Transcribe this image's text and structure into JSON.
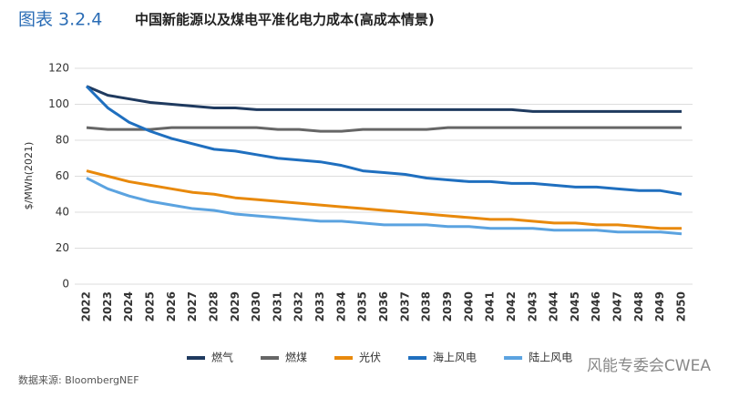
{
  "chart_data": {
    "type": "line",
    "figure_label": "图表 3.2.4",
    "title": "中国新能源以及煤电平准化电力成本(高成本情景)",
    "y_label": "$/MWh(2021)",
    "source": "数据来源: BloombergNEF",
    "watermark": "风能专委会CWEA",
    "categories": [
      "2022",
      "2023",
      "2024",
      "2025",
      "2026",
      "2027",
      "2028",
      "2029",
      "2030",
      "2031",
      "2032",
      "2033",
      "2034",
      "2035",
      "2036",
      "2037",
      "2038",
      "2039",
      "2040",
      "2041",
      "2042",
      "2043",
      "2044",
      "2045",
      "2046",
      "2047",
      "2048",
      "2049",
      "2050"
    ],
    "series": [
      {
        "name": "燃气",
        "color": "#1f3a5f",
        "values": [
          110,
          105,
          103,
          101,
          100,
          99,
          98,
          98,
          97,
          97,
          97,
          97,
          97,
          97,
          97,
          97,
          97,
          97,
          97,
          97,
          97,
          96,
          96,
          96,
          96,
          96,
          96,
          96,
          96
        ]
      },
      {
        "name": "燃煤",
        "color": "#666666",
        "values": [
          87,
          86,
          86,
          86,
          87,
          87,
          87,
          87,
          87,
          86,
          86,
          85,
          85,
          86,
          86,
          86,
          86,
          87,
          87,
          87,
          87,
          87,
          87,
          87,
          87,
          87,
          87,
          87,
          87
        ]
      },
      {
        "name": "光伏",
        "color": "#e8890c",
        "values": [
          63,
          60,
          57,
          55,
          53,
          51,
          50,
          48,
          47,
          46,
          45,
          44,
          43,
          42,
          41,
          40,
          39,
          38,
          37,
          36,
          36,
          35,
          34,
          34,
          33,
          33,
          32,
          31,
          31
        ]
      },
      {
        "name": "海上风电",
        "color": "#1f6fbf",
        "values": [
          110,
          98,
          90,
          85,
          81,
          78,
          75,
          74,
          72,
          70,
          69,
          68,
          66,
          63,
          62,
          61,
          59,
          58,
          57,
          57,
          56,
          56,
          55,
          54,
          54,
          53,
          52,
          52,
          50
        ]
      },
      {
        "name": "陆上风电",
        "color": "#5ba3e0",
        "values": [
          59,
          53,
          49,
          46,
          44,
          42,
          41,
          39,
          38,
          37,
          36,
          35,
          35,
          34,
          33,
          33,
          33,
          32,
          32,
          31,
          31,
          31,
          30,
          30,
          30,
          29,
          29,
          29,
          28
        ]
      }
    ],
    "ylim": [
      0,
      120
    ],
    "yticks": [
      0,
      20,
      40,
      60,
      80,
      100,
      120
    ],
    "grid": true
  }
}
